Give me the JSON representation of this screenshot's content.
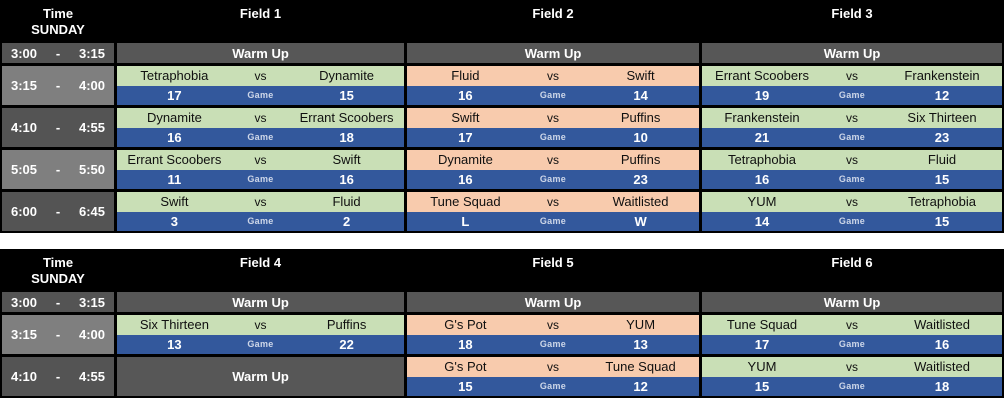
{
  "colors": {
    "header_bg": "#000000",
    "header_text": "#ffffff",
    "warmup_bg": "#575757",
    "time_dark": "#545454",
    "time_light": "#7f7f7f",
    "match_green": "#c9dfb6",
    "match_peach": "#f8cbad",
    "score_blue": "#33589c"
  },
  "tables": [
    {
      "header": {
        "time_label": "Time",
        "day_label": "SUNDAY",
        "fields": [
          "Field 1",
          "Field 2",
          "Field 3"
        ]
      },
      "rows": [
        {
          "time": {
            "start": "3:00",
            "dash": "-",
            "end": "3:15"
          },
          "shade": "dark",
          "cells": [
            {
              "type": "warmup",
              "label": "Warm Up"
            },
            {
              "type": "warmup",
              "label": "Warm Up"
            },
            {
              "type": "warmup",
              "label": "Warm Up"
            }
          ]
        },
        {
          "time": {
            "start": "3:15",
            "dash": "-",
            "end": "4:00"
          },
          "shade": "light",
          "cells": [
            {
              "type": "match",
              "tone": "green",
              "team1": "Tetraphobia",
              "vs": "vs",
              "team2": "Dynamite",
              "score1": "17",
              "game": "Game",
              "score2": "15"
            },
            {
              "type": "match",
              "tone": "peach",
              "team1": "Fluid",
              "vs": "vs",
              "team2": "Swift",
              "score1": "16",
              "game": "Game",
              "score2": "14"
            },
            {
              "type": "match",
              "tone": "green",
              "team1": "Errant Scoobers",
              "vs": "vs",
              "team2": "Frankenstein",
              "score1": "19",
              "game": "Game",
              "score2": "12"
            }
          ]
        },
        {
          "time": {
            "start": "4:10",
            "dash": "-",
            "end": "4:55"
          },
          "shade": "dark",
          "cells": [
            {
              "type": "match",
              "tone": "green",
              "team1": "Dynamite",
              "vs": "vs",
              "team2": "Errant Scoobers",
              "score1": "16",
              "game": "Game",
              "score2": "18"
            },
            {
              "type": "match",
              "tone": "peach",
              "team1": "Swift",
              "vs": "vs",
              "team2": "Puffins",
              "score1": "17",
              "game": "Game",
              "score2": "10"
            },
            {
              "type": "match",
              "tone": "green",
              "team1": "Frankenstein",
              "vs": "vs",
              "team2": "Six Thirteen",
              "score1": "21",
              "game": "Game",
              "score2": "23"
            }
          ]
        },
        {
          "time": {
            "start": "5:05",
            "dash": "-",
            "end": "5:50"
          },
          "shade": "light",
          "cells": [
            {
              "type": "match",
              "tone": "green",
              "team1": "Errant Scoobers",
              "vs": "vs",
              "team2": "Swift",
              "score1": "11",
              "game": "Game",
              "score2": "16"
            },
            {
              "type": "match",
              "tone": "peach",
              "team1": "Dynamite",
              "vs": "vs",
              "team2": "Puffins",
              "score1": "16",
              "game": "Game",
              "score2": "23"
            },
            {
              "type": "match",
              "tone": "green",
              "team1": "Tetraphobia",
              "vs": "vs",
              "team2": "Fluid",
              "score1": "16",
              "game": "Game",
              "score2": "15"
            }
          ]
        },
        {
          "time": {
            "start": "6:00",
            "dash": "-",
            "end": "6:45"
          },
          "shade": "dark",
          "cells": [
            {
              "type": "match",
              "tone": "green",
              "team1": "Swift",
              "vs": "vs",
              "team2": "Fluid",
              "score1": "3",
              "game": "Game",
              "score2": "2"
            },
            {
              "type": "match",
              "tone": "peach",
              "team1": "Tune Squad",
              "vs": "vs",
              "team2": "Waitlisted",
              "score1": "L",
              "game": "Game",
              "score2": "W"
            },
            {
              "type": "match",
              "tone": "green",
              "team1": "YUM",
              "vs": "vs",
              "team2": "Tetraphobia",
              "score1": "14",
              "game": "Game",
              "score2": "15"
            }
          ]
        }
      ]
    },
    {
      "header": {
        "time_label": "Time",
        "day_label": "SUNDAY",
        "fields": [
          "Field 4",
          "Field 5",
          "Field 6"
        ]
      },
      "rows": [
        {
          "time": {
            "start": "3:00",
            "dash": "-",
            "end": "3:15"
          },
          "shade": "dark",
          "cells": [
            {
              "type": "warmup",
              "label": "Warm Up"
            },
            {
              "type": "warmup",
              "label": "Warm Up"
            },
            {
              "type": "warmup",
              "label": "Warm Up"
            }
          ]
        },
        {
          "time": {
            "start": "3:15",
            "dash": "-",
            "end": "4:00"
          },
          "shade": "light",
          "cells": [
            {
              "type": "match",
              "tone": "green",
              "team1": "Six Thirteen",
              "vs": "vs",
              "team2": "Puffins",
              "score1": "13",
              "game": "Game",
              "score2": "22"
            },
            {
              "type": "match",
              "tone": "peach",
              "team1": "G's Pot",
              "vs": "vs",
              "team2": "YUM",
              "score1": "18",
              "game": "Game",
              "score2": "13"
            },
            {
              "type": "match",
              "tone": "green",
              "team1": "Tune Squad",
              "vs": "vs",
              "team2": "Waitlisted",
              "score1": "17",
              "game": "Game",
              "score2": "16"
            }
          ]
        },
        {
          "time": {
            "start": "4:10",
            "dash": "-",
            "end": "4:55"
          },
          "shade": "dark",
          "cells": [
            {
              "type": "warmup",
              "label": "Warm Up"
            },
            {
              "type": "match",
              "tone": "peach",
              "team1": "G's Pot",
              "vs": "vs",
              "team2": "Tune Squad",
              "score1": "15",
              "game": "Game",
              "score2": "12"
            },
            {
              "type": "match",
              "tone": "green",
              "team1": "YUM",
              "vs": "vs",
              "team2": "Waitlisted",
              "score1": "15",
              "game": "Game",
              "score2": "18"
            }
          ]
        }
      ]
    }
  ]
}
